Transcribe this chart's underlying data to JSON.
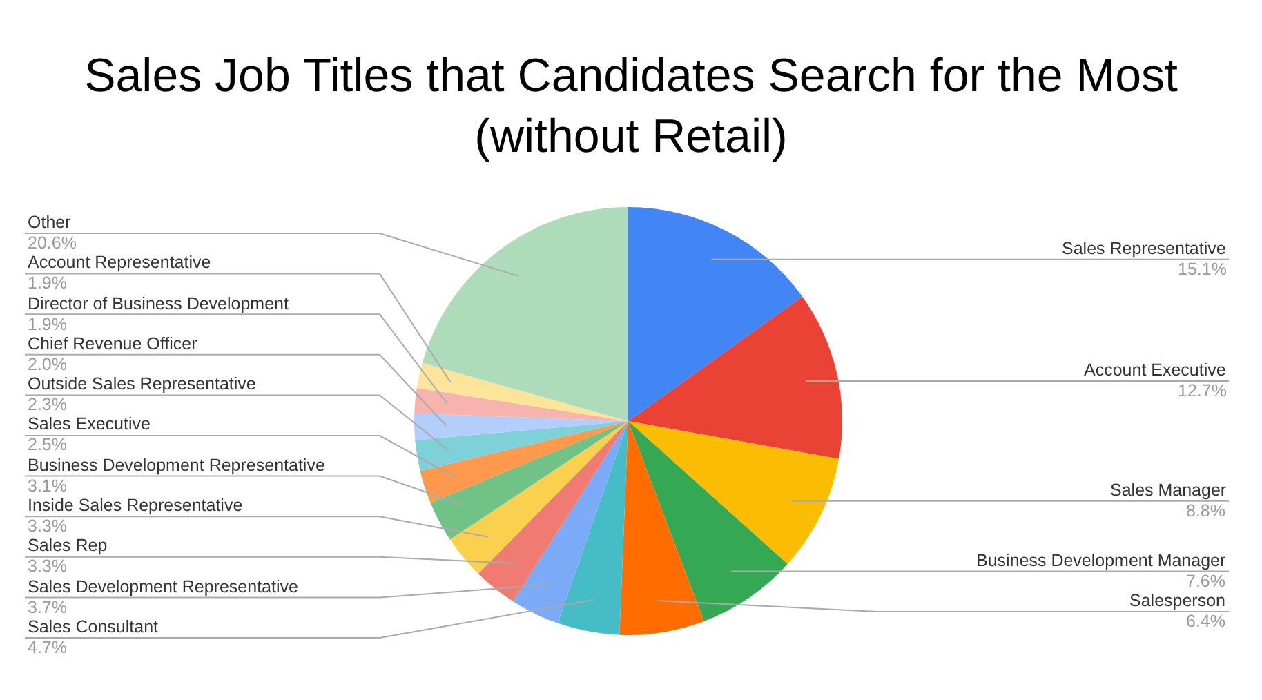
{
  "chart_data": {
    "type": "pie",
    "title": "Sales Job Titles that Candidates Search for the Most\n(without Retail)",
    "categories": [
      "Sales Representative",
      "Account Executive",
      "Sales Manager",
      "Business Development Manager",
      "Salesperson",
      "Sales Consultant",
      "Sales Development Representative",
      "Sales Rep",
      "Inside Sales Representative",
      "Business Development Representative",
      "Sales Executive",
      "Outside Sales Representative",
      "Chief Revenue Officer",
      "Director of Business Development",
      "Account Representative",
      "Other"
    ],
    "values": [
      15.1,
      12.7,
      8.8,
      7.6,
      6.4,
      4.7,
      3.7,
      3.3,
      3.3,
      3.1,
      2.5,
      2.3,
      2.0,
      1.9,
      1.9,
      20.6
    ],
    "value_labels": [
      "15.1%",
      "12.7%",
      "8.8%",
      "7.6%",
      "6.4%",
      "4.7%",
      "3.7%",
      "3.3%",
      "3.3%",
      "3.1%",
      "2.5%",
      "2.3%",
      "2.0%",
      "1.9%",
      "1.9%",
      "20.6%"
    ],
    "colors": [
      "#4285f4",
      "#ea4335",
      "#fbbc04",
      "#34a853",
      "#ff6d01",
      "#46bdc6",
      "#7baaf7",
      "#f07b72",
      "#fcd04f",
      "#71c287",
      "#ff994d",
      "#7ed1d7",
      "#b3cefb",
      "#f7b4ae",
      "#fde49b",
      "#aedcba"
    ],
    "legend": false
  }
}
